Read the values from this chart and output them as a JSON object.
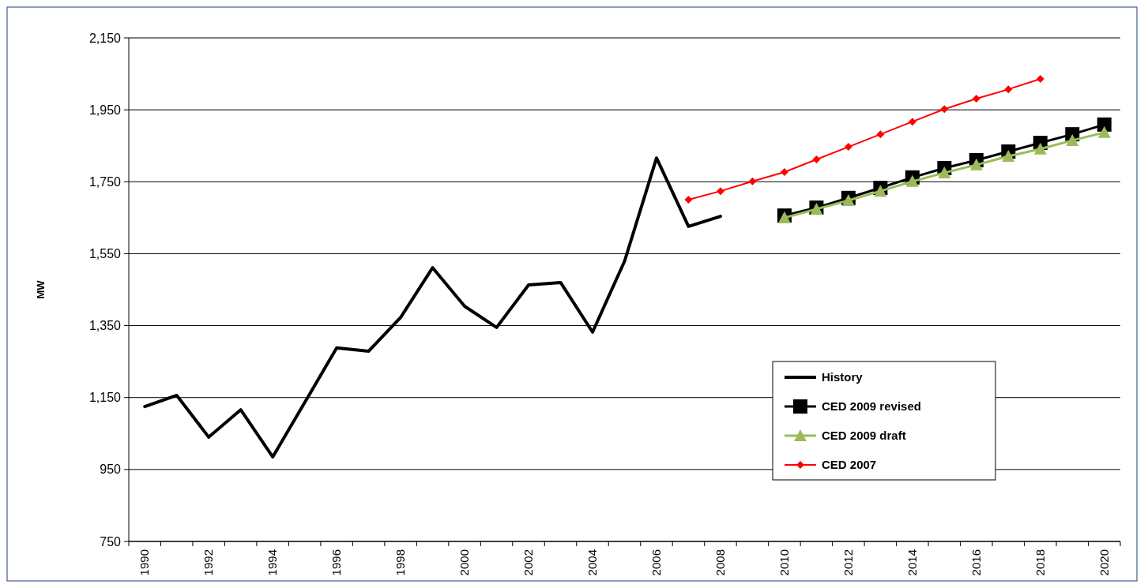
{
  "chart_data": {
    "type": "line",
    "ylabel": "MW",
    "categories": [
      "1990",
      null,
      "1992",
      null,
      "1994",
      null,
      "1996",
      null,
      "1998",
      null,
      "2000",
      null,
      "2002",
      null,
      "2004",
      null,
      "2006",
      null,
      "2008",
      null,
      "2010",
      null,
      "2012",
      null,
      "2014",
      null,
      "2016",
      null,
      "2018",
      null,
      "2020"
    ],
    "series": [
      {
        "name": "History",
        "color": "#000000",
        "marker": "none",
        "values": [
          1125,
          1156,
          1040,
          1116,
          985,
          1136,
          1288,
          1279,
          1373,
          1511,
          1404,
          1345,
          1463,
          1470,
          1332,
          1529,
          1816,
          1626,
          1654,
          null,
          null,
          null,
          null,
          null,
          null,
          null,
          null,
          null,
          null,
          null,
          null
        ]
      },
      {
        "name": "CED 2009 revised",
        "color": "#000000",
        "marker": "square",
        "values": [
          null,
          null,
          null,
          null,
          null,
          null,
          null,
          null,
          null,
          null,
          null,
          null,
          null,
          null,
          null,
          null,
          null,
          null,
          null,
          null,
          1656,
          1678,
          1705,
          1733,
          1762,
          1788,
          1810,
          1834,
          1858,
          1882,
          1909
        ]
      },
      {
        "name": "CED 2009 draft",
        "color": "#9bbb59",
        "marker": "triangle",
        "values": [
          null,
          null,
          null,
          null,
          null,
          null,
          null,
          null,
          null,
          null,
          null,
          null,
          null,
          null,
          null,
          null,
          null,
          null,
          null,
          null,
          1650,
          1674,
          1698,
          1724,
          1751,
          1775,
          1797,
          1821,
          1841,
          1865,
          1887
        ]
      },
      {
        "name": "CED 2007",
        "color": "#ff0000",
        "marker": "diamond",
        "values": [
          null,
          null,
          null,
          null,
          null,
          null,
          null,
          null,
          null,
          null,
          null,
          null,
          null,
          null,
          null,
          null,
          null,
          1700,
          1724,
          1751,
          1777,
          1812,
          1847,
          1882,
          1917,
          1952,
          1981,
          2007,
          2036,
          null,
          null
        ]
      }
    ],
    "ylim": [
      750,
      2150
    ],
    "yticks": [
      {
        "value": 750,
        "label": "750"
      },
      {
        "value": 950,
        "label": "950"
      },
      {
        "value": 1150,
        "label": "1,150"
      },
      {
        "value": 1350,
        "label": "1,350"
      },
      {
        "value": 1550,
        "label": "1,550"
      },
      {
        "value": 1750,
        "label": "1,750"
      },
      {
        "value": 1950,
        "label": "1,950"
      },
      {
        "value": 2150,
        "label": "2,150"
      }
    ],
    "grid": "y",
    "legend": "bottom right"
  }
}
